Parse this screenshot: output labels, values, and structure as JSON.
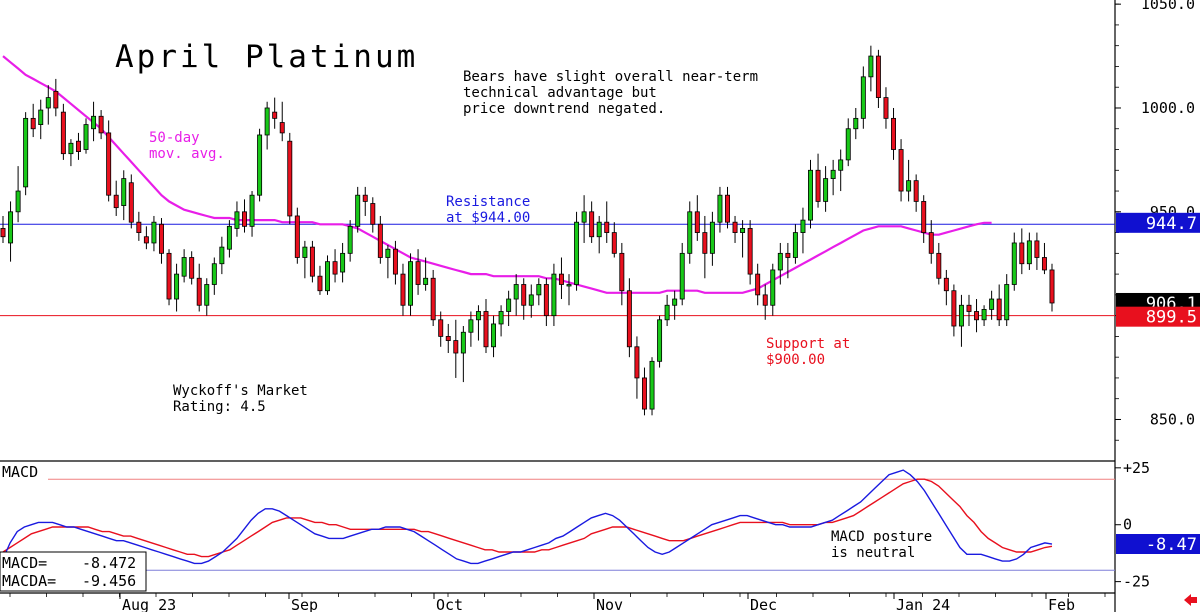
{
  "chart_data": {
    "type": "candlestick",
    "title": "April Platinum",
    "x_labels": [
      "Aug 23",
      "Sep",
      "Oct",
      "Nov",
      "Dec",
      "Jan 24",
      "Feb"
    ],
    "price_axis": {
      "ticks": [
        "1050.0",
        "1000.0",
        "950.0",
        "850.0"
      ],
      "ylim": [
        830,
        1052
      ]
    },
    "price_tags": [
      {
        "label": "944.7",
        "value": 944.7,
        "color": "#1010d0"
      },
      {
        "label": "906.1",
        "value": 906.1,
        "color": "#000000"
      },
      {
        "label": "899.5",
        "value": 899.5,
        "color": "#e8101e"
      }
    ],
    "lines": [
      {
        "value": 944,
        "color": "#1a1ae0"
      },
      {
        "value": 900,
        "color": "#e8101e"
      }
    ],
    "annotations": {
      "bears_note": [
        "Bears have slight overall near-term",
        "technical advantage but",
        "price downtrend negated."
      ],
      "ma_label": [
        "50-day",
        "mov. avg."
      ],
      "resistance": [
        "Resistance",
        "at $944.00"
      ],
      "support": [
        "Support at",
        "$900.00"
      ],
      "rating": [
        "Wyckoff's Market",
        "Rating: 4.5"
      ],
      "macd_note": [
        "MACD posture",
        "is neutral"
      ]
    },
    "candles": [
      [
        942,
        948,
        935,
        938
      ],
      [
        935,
        955,
        926,
        950
      ],
      [
        950,
        972,
        945,
        960
      ],
      [
        962,
        998,
        958,
        995
      ],
      [
        995,
        1002,
        986,
        990
      ],
      [
        992,
        1004,
        985,
        999
      ],
      [
        1000,
        1011,
        992,
        1005
      ],
      [
        1008,
        1014,
        996,
        1000
      ],
      [
        998,
        1002,
        975,
        978
      ],
      [
        978,
        985,
        972,
        983
      ],
      [
        984,
        988,
        975,
        979
      ],
      [
        980,
        995,
        978,
        992
      ],
      [
        990,
        1003,
        984,
        996
      ],
      [
        996,
        999,
        985,
        988
      ],
      [
        988,
        994,
        955,
        958
      ],
      [
        958,
        965,
        948,
        952
      ],
      [
        953,
        970,
        946,
        966
      ],
      [
        964,
        968,
        942,
        945
      ],
      [
        945,
        950,
        936,
        940
      ],
      [
        938,
        943,
        932,
        935
      ],
      [
        935,
        948,
        931,
        945
      ],
      [
        944,
        947,
        925,
        930
      ],
      [
        930,
        932,
        905,
        908
      ],
      [
        908,
        925,
        902,
        920
      ],
      [
        919,
        932,
        916,
        928
      ],
      [
        928,
        931,
        915,
        918
      ],
      [
        918,
        925,
        902,
        905
      ],
      [
        905,
        918,
        900,
        915
      ],
      [
        915,
        928,
        910,
        925
      ],
      [
        925,
        938,
        920,
        933
      ],
      [
        932,
        946,
        928,
        943
      ],
      [
        942,
        955,
        938,
        950
      ],
      [
        950,
        956,
        940,
        943
      ],
      [
        943,
        960,
        938,
        958
      ],
      [
        958,
        990,
        955,
        987
      ],
      [
        987,
        1003,
        980,
        1000
      ],
      [
        998,
        1005,
        990,
        995
      ],
      [
        993,
        1003,
        984,
        988
      ],
      [
        984,
        988,
        944,
        948
      ],
      [
        948,
        952,
        925,
        928
      ],
      [
        928,
        936,
        918,
        933
      ],
      [
        933,
        936,
        916,
        919
      ],
      [
        919,
        924,
        910,
        912
      ],
      [
        912,
        929,
        910,
        926
      ],
      [
        926,
        932,
        916,
        920
      ],
      [
        921,
        935,
        916,
        930
      ],
      [
        930,
        946,
        926,
        943
      ],
      [
        943,
        962,
        940,
        958
      ],
      [
        958,
        962,
        948,
        955
      ],
      [
        954,
        957,
        940,
        944
      ],
      [
        944,
        948,
        925,
        928
      ],
      [
        928,
        934,
        918,
        932
      ],
      [
        932,
        936,
        915,
        920
      ],
      [
        920,
        925,
        900,
        905
      ],
      [
        905,
        930,
        900,
        926
      ],
      [
        926,
        932,
        910,
        915
      ],
      [
        915,
        928,
        912,
        918
      ],
      [
        918,
        922,
        895,
        898
      ],
      [
        898,
        902,
        885,
        890
      ],
      [
        890,
        896,
        882,
        888
      ],
      [
        888,
        898,
        870,
        882
      ],
      [
        882,
        895,
        868,
        892
      ],
      [
        892,
        902,
        885,
        898
      ],
      [
        898,
        905,
        888,
        902
      ],
      [
        902,
        908,
        882,
        885
      ],
      [
        885,
        900,
        880,
        896
      ],
      [
        896,
        905,
        890,
        902
      ],
      [
        902,
        912,
        895,
        908
      ],
      [
        908,
        920,
        900,
        915
      ],
      [
        915,
        918,
        898,
        905
      ],
      [
        905,
        915,
        899,
        910
      ],
      [
        910,
        918,
        905,
        915
      ],
      [
        915,
        918,
        895,
        900
      ],
      [
        900,
        925,
        895,
        920
      ],
      [
        920,
        928,
        908,
        915
      ],
      [
        915,
        920,
        905,
        915
      ],
      [
        915,
        950,
        912,
        945
      ],
      [
        945,
        958,
        935,
        950
      ],
      [
        950,
        955,
        935,
        938
      ],
      [
        938,
        948,
        930,
        945
      ],
      [
        945,
        955,
        935,
        940
      ],
      [
        940,
        945,
        928,
        930
      ],
      [
        930,
        935,
        905,
        912
      ],
      [
        912,
        918,
        880,
        885
      ],
      [
        885,
        890,
        860,
        870
      ],
      [
        870,
        875,
        852,
        855
      ],
      [
        855,
        880,
        852,
        878
      ],
      [
        878,
        900,
        875,
        898
      ],
      [
        898,
        910,
        895,
        905
      ],
      [
        905,
        912,
        898,
        908
      ],
      [
        908,
        935,
        905,
        930
      ],
      [
        930,
        955,
        925,
        950
      ],
      [
        950,
        958,
        936,
        940
      ],
      [
        940,
        948,
        918,
        930
      ],
      [
        930,
        950,
        924,
        945
      ],
      [
        945,
        962,
        940,
        958
      ],
      [
        958,
        962,
        942,
        945
      ],
      [
        945,
        948,
        935,
        940
      ],
      [
        940,
        946,
        928,
        942
      ],
      [
        942,
        946,
        915,
        920
      ],
      [
        920,
        925,
        905,
        910
      ],
      [
        910,
        915,
        898,
        905
      ],
      [
        905,
        925,
        900,
        922
      ],
      [
        922,
        935,
        915,
        930
      ],
      [
        930,
        935,
        918,
        928
      ],
      [
        928,
        944,
        925,
        940
      ],
      [
        940,
        952,
        930,
        946
      ],
      [
        946,
        975,
        942,
        970
      ],
      [
        970,
        978,
        952,
        955
      ],
      [
        955,
        972,
        950,
        966
      ],
      [
        966,
        975,
        958,
        970
      ],
      [
        970,
        980,
        960,
        975
      ],
      [
        975,
        995,
        972,
        990
      ],
      [
        990,
        1000,
        985,
        995
      ],
      [
        995,
        1020,
        990,
        1015
      ],
      [
        1015,
        1030,
        1008,
        1025
      ],
      [
        1025,
        1028,
        1000,
        1005
      ],
      [
        1005,
        1010,
        990,
        995
      ],
      [
        995,
        1000,
        975,
        980
      ],
      [
        980,
        985,
        955,
        960
      ],
      [
        960,
        975,
        955,
        965
      ],
      [
        965,
        968,
        950,
        955
      ],
      [
        955,
        958,
        935,
        940
      ],
      [
        940,
        946,
        925,
        930
      ],
      [
        930,
        935,
        915,
        918
      ],
      [
        918,
        922,
        905,
        912
      ],
      [
        912,
        915,
        890,
        895
      ],
      [
        895,
        910,
        885,
        905
      ],
      [
        905,
        910,
        895,
        902
      ],
      [
        902,
        908,
        892,
        898
      ],
      [
        898,
        905,
        895,
        903
      ],
      [
        903,
        912,
        898,
        908
      ],
      [
        908,
        915,
        895,
        898
      ],
      [
        898,
        920,
        895,
        915
      ],
      [
        915,
        940,
        912,
        935
      ],
      [
        935,
        942,
        920,
        925
      ],
      [
        925,
        940,
        922,
        936
      ],
      [
        936,
        940,
        922,
        928
      ],
      [
        928,
        935,
        920,
        922
      ],
      [
        922,
        925,
        902,
        906.1
      ]
    ],
    "ma": [
      1025,
      1022,
      1019,
      1016,
      1014,
      1012,
      1010,
      1008,
      1005,
      1002,
      999,
      996,
      993,
      990,
      986,
      982,
      978,
      974,
      970,
      966,
      962,
      958,
      955,
      953,
      951,
      950,
      949,
      948,
      947,
      947,
      947,
      946,
      946,
      946,
      946,
      946,
      946,
      945,
      945,
      945,
      945,
      945,
      944,
      944,
      944,
      944,
      943,
      942,
      940,
      938,
      936,
      934,
      932,
      930,
      928,
      927,
      926,
      925,
      924,
      923,
      922,
      921,
      920,
      920,
      920,
      919,
      919,
      919,
      919,
      919,
      919,
      919,
      918,
      918,
      917,
      916,
      915,
      914,
      913,
      912,
      911,
      911,
      911,
      911,
      911,
      911,
      911,
      911,
      912,
      912,
      912,
      912,
      912,
      911,
      911,
      911,
      911,
      911,
      911,
      912,
      913,
      915,
      917,
      919,
      921,
      923,
      925,
      927,
      929,
      931,
      933,
      935,
      937,
      939,
      941,
      942,
      943,
      943,
      943,
      943,
      942,
      941,
      940,
      939,
      939,
      940,
      941,
      942,
      943,
      944,
      944.7,
      944.7
    ],
    "macd_panel": {
      "label": "MACD",
      "ticks": [
        "+25",
        "0",
        "-25"
      ],
      "ylim": [
        -30,
        28
      ],
      "macd_tag": "-8.47",
      "readouts": [
        {
          "name": "MACD=",
          "value": "-8.472"
        },
        {
          "name": "MACDA=",
          "value": "-9.456"
        }
      ],
      "macd": [
        -15,
        -8,
        -3,
        -1,
        0,
        1,
        1,
        1,
        0,
        -1,
        -1,
        -2,
        -3,
        -4,
        -5,
        -6,
        -7,
        -7,
        -8,
        -9,
        -10,
        -11,
        -12,
        -13,
        -14,
        -15,
        -16,
        -17,
        -17,
        -16,
        -14,
        -12,
        -9,
        -6,
        -2,
        2,
        5,
        7,
        7,
        6,
        4,
        2,
        0,
        -2,
        -4,
        -5,
        -6,
        -6,
        -6,
        -5,
        -4,
        -3,
        -2,
        -2,
        -1,
        -1,
        -1,
        -2,
        -3,
        -5,
        -7,
        -9,
        -11,
        -13,
        -15,
        -16,
        -17,
        -17,
        -16,
        -15,
        -14,
        -13,
        -12,
        -12,
        -11,
        -10,
        -9,
        -8,
        -6,
        -5,
        -3,
        -1,
        1,
        3,
        4,
        5,
        4,
        2,
        -1,
        -4,
        -7,
        -10,
        -12,
        -13,
        -12,
        -10,
        -8,
        -6,
        -4,
        -2,
        0,
        1,
        2,
        3,
        4,
        4,
        3,
        2,
        1,
        0,
        0,
        -1,
        -1,
        -1,
        -1,
        0,
        1,
        2,
        4,
        6,
        8,
        10,
        13,
        16,
        19,
        22,
        23,
        24,
        22,
        19,
        15,
        10,
        5,
        0,
        -5,
        -10,
        -13,
        -13,
        -13,
        -14,
        -15,
        -16,
        -16,
        -15,
        -13,
        -10,
        -9,
        -8,
        -8.5
      ],
      "signal": [
        -12,
        -10,
        -8,
        -6,
        -4,
        -3,
        -2,
        -1,
        -1,
        -1,
        -1,
        -1,
        -1,
        -2,
        -3,
        -3,
        -4,
        -5,
        -5,
        -6,
        -7,
        -8,
        -9,
        -10,
        -11,
        -12,
        -13,
        -13,
        -14,
        -14,
        -13,
        -12,
        -11,
        -9,
        -7,
        -5,
        -3,
        -1,
        1,
        2,
        3,
        3,
        3,
        2,
        1,
        1,
        0,
        0,
        -1,
        -2,
        -2,
        -2,
        -2,
        -2,
        -2,
        -2,
        -2,
        -2,
        -2,
        -3,
        -3,
        -4,
        -5,
        -6,
        -7,
        -8,
        -9,
        -10,
        -11,
        -11,
        -12,
        -12,
        -12,
        -12,
        -12,
        -12,
        -11,
        -11,
        -10,
        -9,
        -8,
        -7,
        -6,
        -4,
        -3,
        -2,
        -1,
        -1,
        -1,
        -2,
        -3,
        -4,
        -5,
        -6,
        -7,
        -7,
        -7,
        -6,
        -5,
        -4,
        -3,
        -2,
        -1,
        0,
        1,
        1,
        1,
        1,
        1,
        1,
        1,
        0,
        0,
        0,
        0,
        0,
        1,
        1,
        2,
        3,
        4,
        6,
        8,
        10,
        12,
        14,
        16,
        18,
        19,
        20,
        20,
        19,
        17,
        14,
        11,
        8,
        4,
        1,
        -3,
        -6,
        -8,
        -10,
        -11,
        -12,
        -12,
        -12,
        -11,
        -10,
        -9.5
      ]
    }
  }
}
